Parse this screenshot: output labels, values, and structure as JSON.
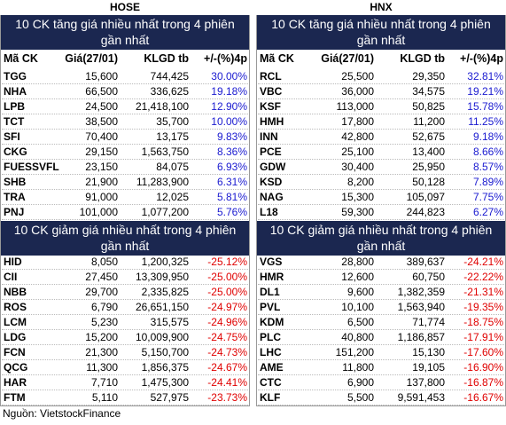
{
  "panels": [
    {
      "name": "HOSE",
      "columns": [
        "Mã CK",
        "Giá(27/01)",
        "KLGD tb",
        "+/-(%)4p"
      ],
      "gainers": {
        "title": [
          "10 CK tăng giá nhiều nhất trong 4 phiên",
          "gần nhất"
        ],
        "rows": [
          [
            "TGG",
            "15,600",
            "744,425",
            "30.00%"
          ],
          [
            "NHA",
            "66,500",
            "336,625",
            "19.18%"
          ],
          [
            "LPB",
            "24,500",
            "21,418,100",
            "12.90%"
          ],
          [
            "TCT",
            "38,500",
            "35,700",
            "10.00%"
          ],
          [
            "SFI",
            "70,400",
            "13,175",
            "9.83%"
          ],
          [
            "CKG",
            "29,150",
            "1,563,750",
            "8.36%"
          ],
          [
            "FUESSVFL",
            "23,150",
            "84,075",
            "6.93%"
          ],
          [
            "SHB",
            "21,900",
            "11,283,900",
            "6.31%"
          ],
          [
            "TRA",
            "91,000",
            "12,025",
            "5.81%"
          ],
          [
            "PNJ",
            "101,000",
            "1,077,200",
            "5.76%"
          ]
        ]
      },
      "losers": {
        "title": [
          "10 CK giảm giá nhiều nhất trong 4 phiên",
          "gần nhất"
        ],
        "rows": [
          [
            "HID",
            "8,050",
            "1,200,325",
            "-25.12%"
          ],
          [
            "CII",
            "27,450",
            "13,309,950",
            "-25.00%"
          ],
          [
            "NBB",
            "29,700",
            "2,335,825",
            "-25.00%"
          ],
          [
            "ROS",
            "6,790",
            "26,651,150",
            "-24.97%"
          ],
          [
            "LCM",
            "5,230",
            "315,575",
            "-24.96%"
          ],
          [
            "LDG",
            "15,200",
            "10,009,900",
            "-24.75%"
          ],
          [
            "FCN",
            "21,300",
            "5,150,700",
            "-24.73%"
          ],
          [
            "QCG",
            "11,300",
            "1,856,375",
            "-24.67%"
          ],
          [
            "HAR",
            "7,710",
            "1,475,300",
            "-24.41%"
          ],
          [
            "FTM",
            "5,110",
            "527,975",
            "-23.73%"
          ]
        ]
      }
    },
    {
      "name": "HNX",
      "columns": [
        "Mã CK",
        "Giá(27/01)",
        "KLGD tb",
        "+/-(%)4p"
      ],
      "gainers": {
        "title": [
          "10 CK tăng giá nhiều nhất trong 4 phiên",
          "gần nhất"
        ],
        "rows": [
          [
            "RCL",
            "25,500",
            "29,350",
            "32.81%"
          ],
          [
            "VBC",
            "36,000",
            "34,575",
            "19.21%"
          ],
          [
            "KSF",
            "113,000",
            "50,825",
            "15.78%"
          ],
          [
            "HMH",
            "17,800",
            "11,200",
            "11.25%"
          ],
          [
            "INN",
            "42,800",
            "52,675",
            "9.18%"
          ],
          [
            "PCE",
            "25,100",
            "13,400",
            "8.66%"
          ],
          [
            "GDW",
            "30,400",
            "25,950",
            "8.57%"
          ],
          [
            "KSD",
            "8,200",
            "50,128",
            "7.89%"
          ],
          [
            "NAG",
            "15,300",
            "105,097",
            "7.75%"
          ],
          [
            "L18",
            "59,300",
            "244,823",
            "6.27%"
          ]
        ]
      },
      "losers": {
        "title": [
          "10 CK giảm giá nhiều nhất trong 4 phiên",
          "gần nhất"
        ],
        "rows": [
          [
            "VGS",
            "28,800",
            "389,637",
            "-24.21%"
          ],
          [
            "HMR",
            "12,600",
            "60,750",
            "-22.22%"
          ],
          [
            "DL1",
            "9,600",
            "1,382,359",
            "-21.31%"
          ],
          [
            "PVL",
            "10,100",
            "1,563,940",
            "-19.35%"
          ],
          [
            "KDM",
            "6,500",
            "71,774",
            "-18.75%"
          ],
          [
            "PLC",
            "40,800",
            "1,186,857",
            "-17.91%"
          ],
          [
            "LHC",
            "151,200",
            "15,130",
            "-17.60%"
          ],
          [
            "AME",
            "11,800",
            "19,105",
            "-16.90%"
          ],
          [
            "CTC",
            "6,900",
            "137,800",
            "-16.87%"
          ],
          [
            "KLF",
            "5,500",
            "9,591,453",
            "-16.67%"
          ]
        ]
      }
    }
  ],
  "source": "Nguồn: VietstockFinance"
}
